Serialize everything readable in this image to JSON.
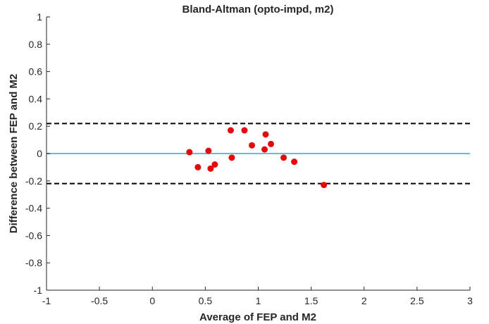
{
  "chart_data": {
    "type": "scatter",
    "title": "Bland-Altman (opto-impd, m2)",
    "xlabel": "Average of FEP and M2",
    "ylabel": "Difference between FEP and M2",
    "xlim": [
      -1,
      3
    ],
    "ylim": [
      -1,
      1
    ],
    "xticks": [
      -1,
      -0.5,
      0,
      0.5,
      1,
      1.5,
      2,
      2.5,
      3
    ],
    "xtick_labels": [
      "-1",
      "-0.5",
      "0",
      "0.5",
      "1",
      "1.5",
      "2",
      "2.5",
      "3"
    ],
    "yticks": [
      -1,
      -0.8,
      -0.6,
      -0.4,
      -0.2,
      0,
      0.2,
      0.4,
      0.6,
      0.8,
      1
    ],
    "ytick_labels": [
      "-1",
      "-0.8",
      "-0.6",
      "-0.4",
      "-0.2",
      "0",
      "0.2",
      "0.4",
      "0.6",
      "0.8",
      "1"
    ],
    "grid": false,
    "points": [
      {
        "x": 0.35,
        "y": 0.01
      },
      {
        "x": 0.43,
        "y": -0.1
      },
      {
        "x": 0.53,
        "y": 0.02
      },
      {
        "x": 0.55,
        "y": -0.11
      },
      {
        "x": 0.59,
        "y": -0.08
      },
      {
        "x": 0.74,
        "y": 0.17
      },
      {
        "x": 0.75,
        "y": -0.03
      },
      {
        "x": 0.87,
        "y": 0.17
      },
      {
        "x": 0.94,
        "y": 0.06
      },
      {
        "x": 1.06,
        "y": 0.03
      },
      {
        "x": 1.07,
        "y": 0.14
      },
      {
        "x": 1.12,
        "y": 0.07
      },
      {
        "x": 1.24,
        "y": -0.03
      },
      {
        "x": 1.34,
        "y": -0.06
      },
      {
        "x": 1.62,
        "y": -0.23
      }
    ],
    "mean_difference": 0,
    "upper_limit_of_agreement": 0.22,
    "lower_limit_of_agreement": -0.22,
    "colors": {
      "points": "#e8060a",
      "mean_line": "#5bbfe6",
      "limit_lines": "#000000",
      "axis": "#262626"
    }
  }
}
